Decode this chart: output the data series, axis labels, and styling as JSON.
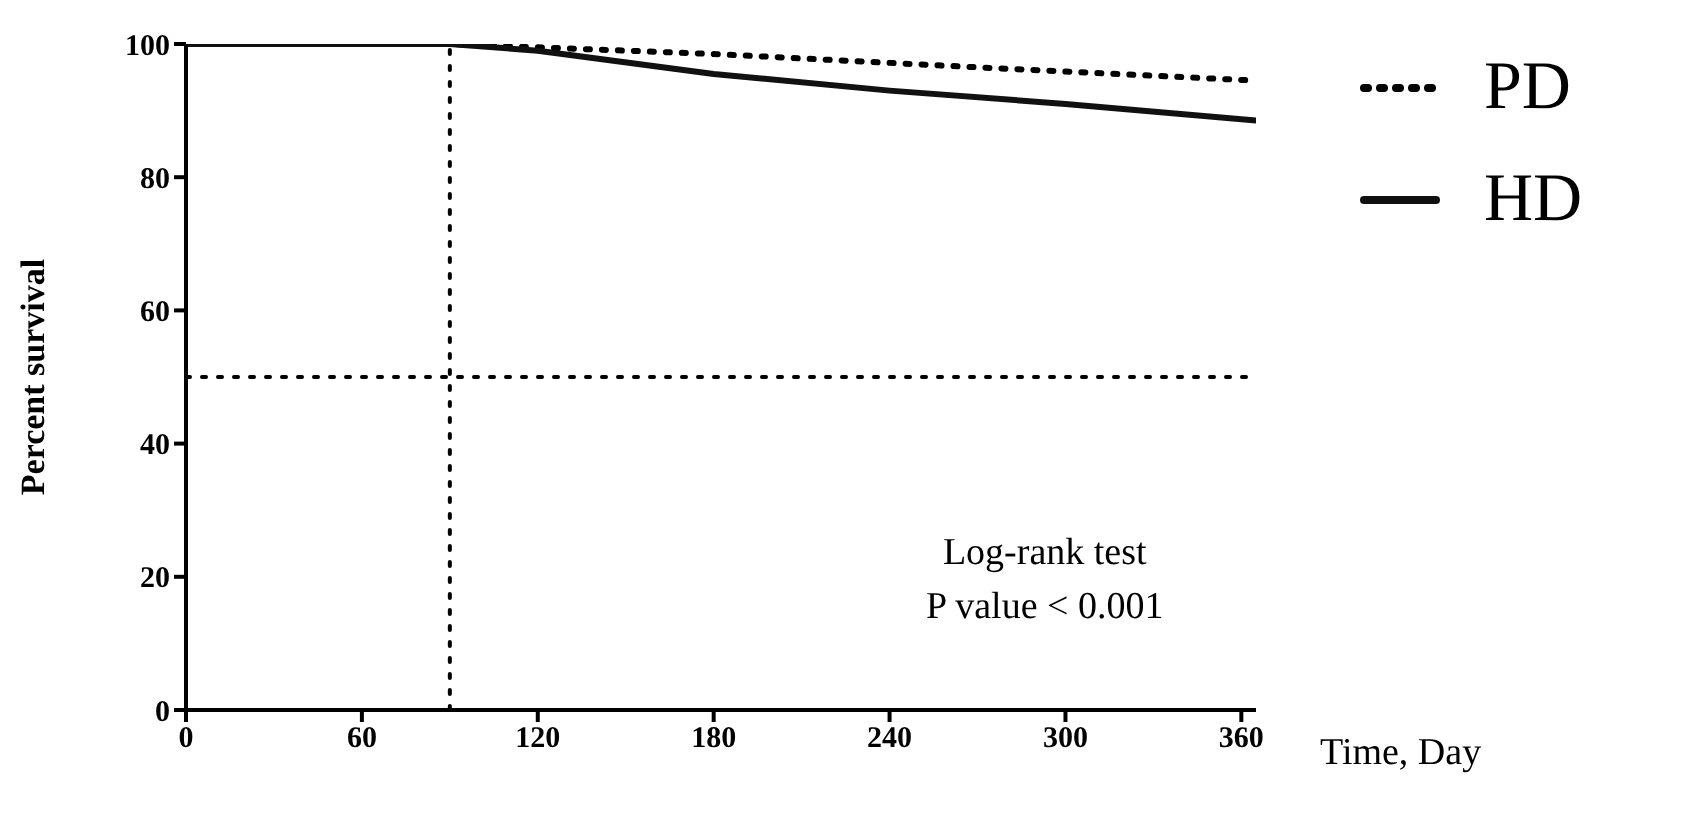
{
  "chart_data": {
    "type": "line",
    "ylabel": "Percent survival",
    "xlabel": "Time, Day",
    "xlim": [
      0,
      365
    ],
    "xticks": [
      0,
      60,
      120,
      180,
      240,
      300,
      360
    ],
    "ylim": [
      0,
      100
    ],
    "yticks": [
      0,
      20,
      40,
      60,
      80,
      100
    ],
    "series": [
      {
        "name": "PD",
        "color": "#000000",
        "line_style": "dotted",
        "x": [
          0,
          90,
          180,
          270,
          365
        ],
        "values": [
          100,
          100,
          98.5,
          96.5,
          94.5
        ]
      },
      {
        "name": "HD",
        "color": "#111111",
        "line_style": "solid",
        "x": [
          0,
          90,
          120,
          180,
          240,
          300,
          365
        ],
        "values": [
          100,
          100,
          99,
          95.5,
          93,
          91,
          88.5
        ]
      }
    ],
    "ref_lines": [
      {
        "axis": "x",
        "value": 90,
        "line_style": "dotted"
      },
      {
        "axis": "y",
        "value": 50,
        "line_style": "dotted"
      }
    ],
    "annotations": [
      "Log-rank test",
      "P value < 0.001"
    ],
    "legend": "right",
    "marker": "none"
  }
}
